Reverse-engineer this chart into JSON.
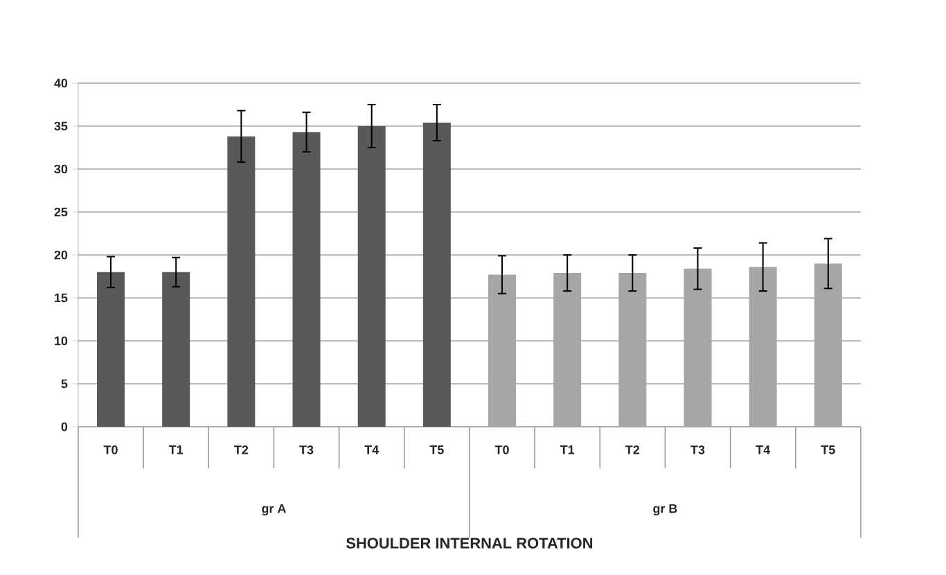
{
  "chart_data": {
    "type": "bar",
    "categories": [
      "T0",
      "T1",
      "T2",
      "T3",
      "T4",
      "T5",
      "T0",
      "T1",
      "T2",
      "T3",
      "T4",
      "T5"
    ],
    "values": [
      18,
      18,
      33.8,
      34.3,
      35,
      35.4,
      17.7,
      17.9,
      17.9,
      18.4,
      18.6,
      19
    ],
    "errors": [
      1.8,
      1.7,
      3,
      2.3,
      2.5,
      2.1,
      2.2,
      2.1,
      2.1,
      2.4,
      2.8,
      2.9
    ],
    "colors": [
      "#595959",
      "#595959",
      "#595959",
      "#595959",
      "#595959",
      "#595959",
      "#a6a6a6",
      "#a6a6a6",
      "#a6a6a6",
      "#a6a6a6",
      "#a6a6a6",
      "#a6a6a6"
    ],
    "annotations": [
      "gr A",
      "gr B",
      "SHOULDER INTERNAL ROTATION"
    ],
    "ylim": [
      0,
      40
    ],
    "yticks": [
      0,
      5,
      10,
      15,
      20,
      25,
      30,
      35,
      40
    ],
    "grid": "y"
  }
}
